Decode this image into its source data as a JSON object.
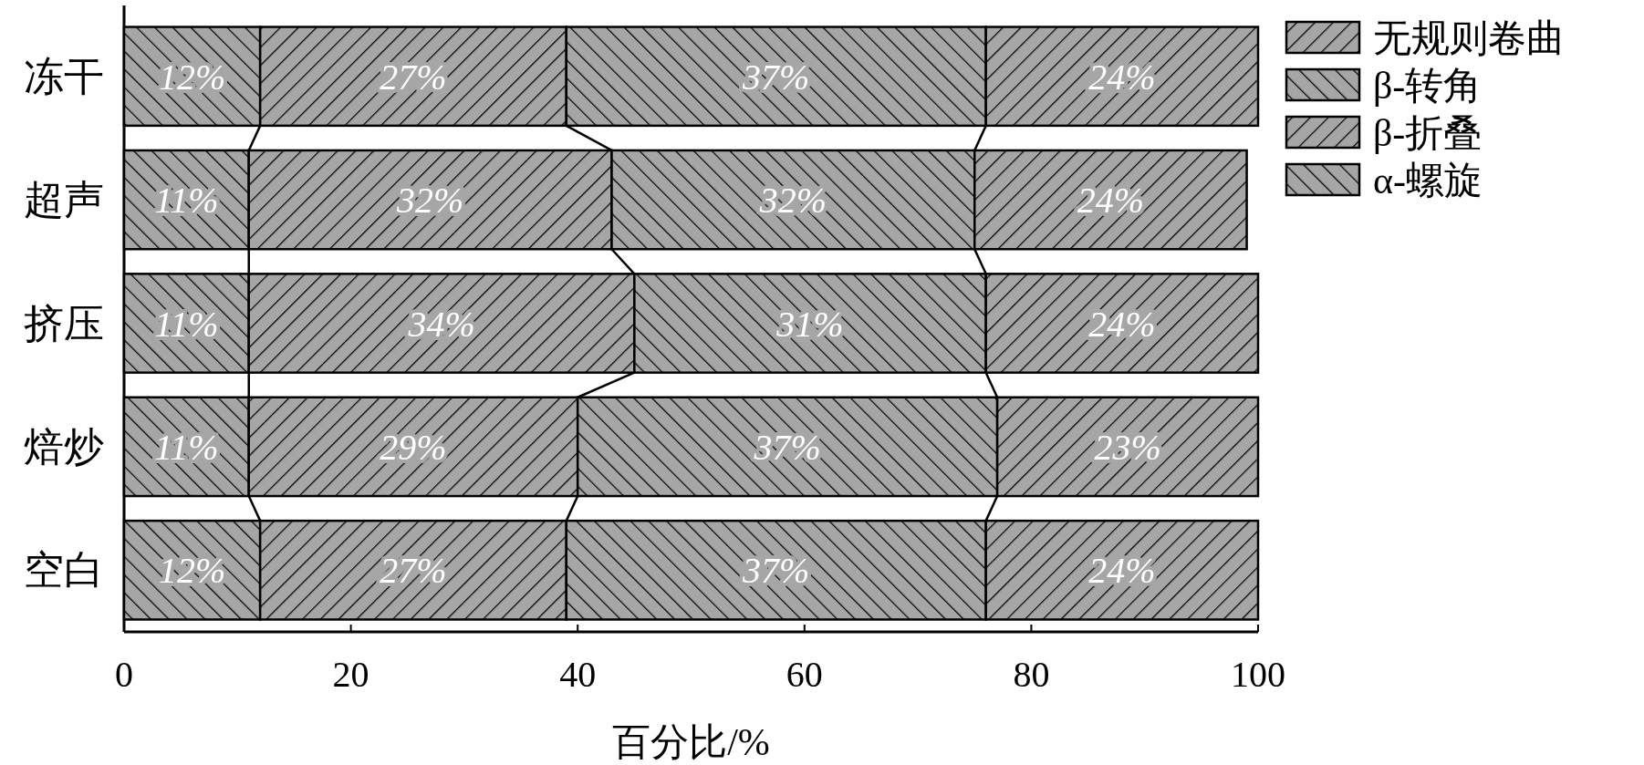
{
  "chart_data": {
    "type": "bar",
    "orientation": "horizontal",
    "stacked": true,
    "categories": [
      "冻干",
      "超声",
      "挤压",
      "焙炒",
      "空白"
    ],
    "series": [
      {
        "name": "α-螺旋",
        "color": "#a6a6a6",
        "values": [
          12,
          11,
          11,
          11,
          12
        ],
        "value_labels": [
          "12%",
          "11%",
          "11%",
          "11%",
          "12%"
        ]
      },
      {
        "name": "β-折叠",
        "color": "#a6a6a6",
        "values": [
          27,
          32,
          34,
          29,
          27
        ],
        "value_labels": [
          "27%",
          "32%",
          "34%",
          "29%",
          "27%"
        ]
      },
      {
        "name": "β-转角",
        "color": "#a6a6a6",
        "values": [
          37,
          32,
          31,
          37,
          37
        ],
        "value_labels": [
          "37%",
          "32%",
          "31%",
          "37%",
          "37%"
        ]
      },
      {
        "name": "无规则卷曲",
        "color": "#a6a6a6",
        "values": [
          24,
          24,
          24,
          23,
          24
        ],
        "value_labels": [
          "24%",
          "24%",
          "24%",
          "23%",
          "24%"
        ]
      }
    ],
    "xlabel": "百分比/%",
    "xlim": [
      0,
      100
    ],
    "xticks": [
      0,
      20,
      40,
      60,
      80,
      100
    ],
    "legend": "top right",
    "grid": false
  }
}
